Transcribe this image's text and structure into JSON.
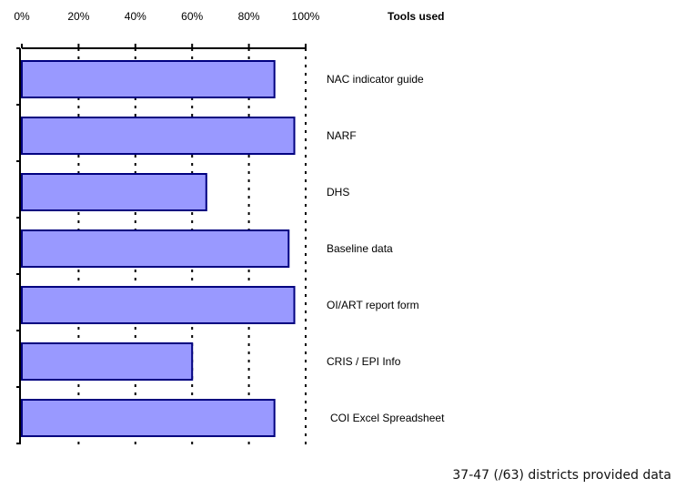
{
  "chart_data": {
    "type": "bar",
    "orientation": "horizontal",
    "title": "Tools used",
    "x_ticks": [
      "0%",
      "20%",
      "40%",
      "60%",
      "80%",
      "100%"
    ],
    "xlim": [
      0,
      100
    ],
    "grid": "vertical dotted lines at 20% intervals",
    "bar_color": "#9999ff",
    "bar_edge_color": "#000080",
    "categories": [
      "NAC indicator guide",
      "NARF",
      "DHS",
      "Baseline data",
      "OI/ART report form",
      "CRIS / EPI Info",
      "COI Excel Spreadsheet"
    ],
    "values": [
      89,
      96,
      65,
      94,
      96,
      60,
      89
    ]
  },
  "footnote": "37-47 (/63) districts provided data"
}
